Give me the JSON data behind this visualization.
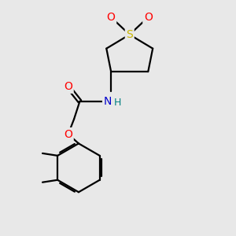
{
  "bg_color": "#e8e8e8",
  "bond_color": "#000000",
  "atom_colors": {
    "O": "#ff0000",
    "S": "#c8b400",
    "N": "#0000cc",
    "H": "#008080",
    "C": "#000000"
  },
  "bond_width": 1.6,
  "figsize": [
    3.0,
    3.0
  ],
  "dpi": 100,
  "font_size": 9.5,
  "xlim": [
    0,
    10
  ],
  "ylim": [
    0,
    10
  ]
}
